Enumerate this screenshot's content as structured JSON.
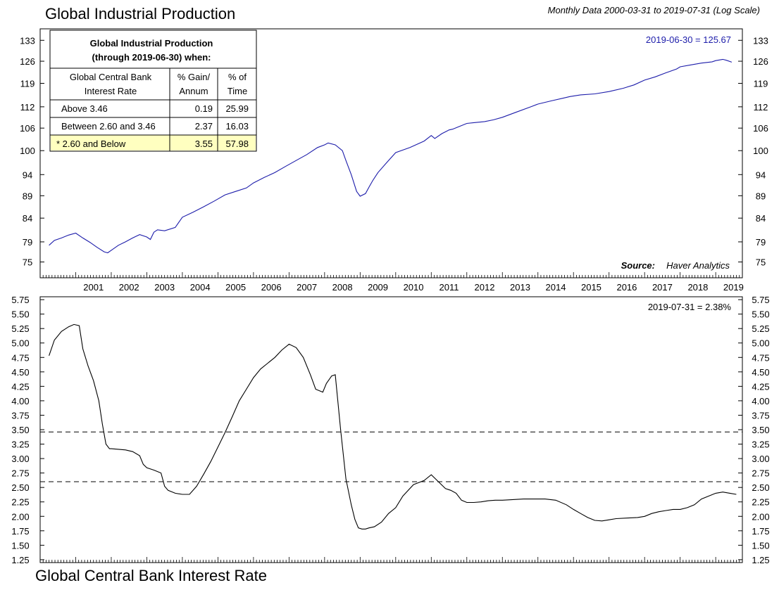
{
  "header": {
    "title": "Global Industrial Production",
    "subtitle": "Monthly Data 2000-03-31 to 2019-07-31 (Log Scale)"
  },
  "footer": {
    "title": "Global Central Bank Interest Rate"
  },
  "summary_table": {
    "title_line1": "Global Industrial Production",
    "title_line2": "(through 2019-06-30) when:",
    "col1_line1": "Global Central Bank",
    "col1_line2": "Interest Rate",
    "col2_line1": "% Gain/",
    "col2_line2": "Annum",
    "col3_line1": "% of",
    "col3_line2": "Time",
    "rows": [
      {
        "label": "Above 3.46",
        "gain": "0.19",
        "time": "25.99"
      },
      {
        "label": "Between 2.60 and 3.46",
        "gain": "2.37",
        "time": "16.03"
      },
      {
        "label": "* 2.60 and Below",
        "gain": "3.55",
        "time": "57.98"
      }
    ],
    "highlight_color": "#ffffc0"
  },
  "chart_data": [
    {
      "type": "line",
      "title": "Global Industrial Production",
      "scale": "log",
      "ylim": [
        72,
        137
      ],
      "y_ticks": [
        "133",
        "126",
        "119",
        "112",
        "106",
        "100",
        "94",
        "89",
        "84",
        "79",
        "75"
      ],
      "y_tick_values": [
        133,
        126,
        119,
        112,
        106,
        100,
        94,
        89,
        84,
        79,
        75
      ],
      "x_ticks": [
        "2001",
        "2002",
        "2003",
        "2004",
        "2005",
        "2006",
        "2007",
        "2008",
        "2009",
        "2010",
        "2011",
        "2012",
        "2013",
        "2014",
        "2015",
        "2016",
        "2017",
        "2018",
        "2019"
      ],
      "last_value_label": "2019-06-30 = 125.67",
      "source_label": "Source:",
      "source_name": "Haver Analytics",
      "color": "#1c1caa",
      "series": [
        {
          "x": [
            2000.25,
            2000.4,
            2000.6,
            2000.8,
            2001.0,
            2001.2,
            2001.4,
            2001.6,
            2001.8,
            2001.9,
            2002.0,
            2002.2,
            2002.4,
            2002.6,
            2002.8,
            2003.0,
            2003.1,
            2003.2,
            2003.3,
            2003.5,
            2003.8,
            2004.0,
            2004.3,
            2004.6,
            2004.9,
            2005.2,
            2005.5,
            2005.8,
            2006.0,
            2006.3,
            2006.6,
            2006.9,
            2007.2,
            2007.5,
            2007.8,
            2008.0,
            2008.1,
            2008.3,
            2008.5,
            2008.6,
            2008.75,
            2008.9,
            2009.0,
            2009.15,
            2009.25,
            2009.35,
            2009.5,
            2009.75,
            2010.0,
            2010.4,
            2010.8,
            2011.0,
            2011.1,
            2011.3,
            2011.5,
            2011.6,
            2011.75,
            2012.0,
            2012.2,
            2012.5,
            2012.75,
            2013.0,
            2013.4,
            2013.8,
            2014.0,
            2014.4,
            2014.7,
            2014.9,
            2015.2,
            2015.6,
            2016.0,
            2016.4,
            2016.7,
            2017.0,
            2017.3,
            2017.6,
            2017.9,
            2018.0,
            2018.3,
            2018.6,
            2018.9,
            2019.0,
            2019.2,
            2019.3,
            2019.45
          ],
          "y": [
            78.3,
            79.3,
            79.8,
            80.4,
            80.8,
            79.8,
            78.9,
            77.9,
            77.0,
            76.8,
            77.3,
            78.3,
            79.0,
            79.8,
            80.5,
            80.0,
            79.5,
            81.0,
            81.5,
            81.3,
            82.0,
            84.2,
            85.3,
            86.5,
            87.8,
            89.2,
            90.0,
            90.8,
            92.0,
            93.3,
            94.5,
            96.0,
            97.5,
            99.0,
            100.8,
            101.5,
            102.0,
            101.5,
            100.0,
            97.5,
            94.0,
            90.0,
            88.9,
            89.5,
            91.0,
            92.5,
            94.5,
            97.0,
            99.5,
            100.8,
            102.5,
            104.0,
            103.2,
            104.5,
            105.5,
            105.7,
            106.3,
            107.3,
            107.5,
            107.8,
            108.3,
            109.0,
            110.5,
            112.0,
            112.8,
            113.8,
            114.5,
            115.0,
            115.5,
            115.8,
            116.5,
            117.5,
            118.5,
            120.0,
            121.0,
            122.3,
            123.5,
            124.2,
            124.8,
            125.4,
            125.8,
            126.2,
            126.6,
            126.3,
            125.7
          ]
        }
      ]
    },
    {
      "type": "line",
      "title": "Global Central Bank Interest Rate",
      "ylim": [
        1.2,
        5.8
      ],
      "y_ticks": [
        "5.75",
        "5.50",
        "5.25",
        "5.00",
        "4.75",
        "4.50",
        "4.25",
        "4.00",
        "3.75",
        "3.50",
        "3.25",
        "3.00",
        "2.75",
        "2.50",
        "2.25",
        "2.00",
        "1.75",
        "1.50",
        "1.25"
      ],
      "y_tick_values": [
        5.75,
        5.5,
        5.25,
        5.0,
        4.75,
        4.5,
        4.25,
        4.0,
        3.75,
        3.5,
        3.25,
        3.0,
        2.75,
        2.5,
        2.25,
        2.0,
        1.75,
        1.5,
        1.25
      ],
      "last_value_label": "2019-07-31 = 2.38%",
      "thresholds": [
        3.46,
        2.6
      ],
      "color": "#000000",
      "series": [
        {
          "x": [
            2000.25,
            2000.4,
            2000.6,
            2000.8,
            2000.95,
            2001.1,
            2001.2,
            2001.35,
            2001.5,
            2001.65,
            2001.75,
            2001.85,
            2001.95,
            2002.0,
            2002.2,
            2002.4,
            2002.6,
            2002.8,
            2002.9,
            2003.0,
            2003.2,
            2003.4,
            2003.5,
            2003.6,
            2003.8,
            2004.0,
            2004.2,
            2004.4,
            2004.6,
            2004.8,
            2005.0,
            2005.2,
            2005.4,
            2005.6,
            2005.8,
            2006.0,
            2006.2,
            2006.4,
            2006.6,
            2006.8,
            2007.0,
            2007.2,
            2007.4,
            2007.6,
            2007.75,
            2007.95,
            2008.05,
            2008.2,
            2008.3,
            2008.45,
            2008.6,
            2008.75,
            2008.85,
            2008.95,
            2009.05,
            2009.15,
            2009.25,
            2009.4,
            2009.6,
            2009.8,
            2010.0,
            2010.2,
            2010.5,
            2010.8,
            2011.0,
            2011.2,
            2011.4,
            2011.55,
            2011.7,
            2011.85,
            2012.0,
            2012.2,
            2012.4,
            2012.6,
            2012.8,
            2013.0,
            2013.3,
            2013.6,
            2013.9,
            2014.2,
            2014.5,
            2014.8,
            2015.0,
            2015.2,
            2015.4,
            2015.6,
            2015.8,
            2016.0,
            2016.2,
            2016.5,
            2016.8,
            2017.0,
            2017.2,
            2017.4,
            2017.6,
            2017.8,
            2018.0,
            2018.2,
            2018.4,
            2018.6,
            2018.8,
            2019.0,
            2019.2,
            2019.4,
            2019.58
          ],
          "y": [
            4.78,
            5.05,
            5.2,
            5.28,
            5.32,
            5.3,
            4.9,
            4.6,
            4.35,
            4.0,
            3.6,
            3.25,
            3.17,
            3.17,
            3.16,
            3.15,
            3.12,
            3.05,
            2.9,
            2.84,
            2.8,
            2.75,
            2.52,
            2.45,
            2.4,
            2.38,
            2.38,
            2.52,
            2.73,
            2.95,
            3.2,
            3.45,
            3.72,
            4.0,
            4.2,
            4.4,
            4.55,
            4.65,
            4.75,
            4.88,
            4.98,
            4.92,
            4.75,
            4.45,
            4.2,
            4.15,
            4.3,
            4.43,
            4.45,
            3.5,
            2.65,
            2.2,
            1.95,
            1.8,
            1.78,
            1.78,
            1.8,
            1.82,
            1.9,
            2.05,
            2.15,
            2.35,
            2.55,
            2.62,
            2.72,
            2.6,
            2.48,
            2.45,
            2.4,
            2.28,
            2.24,
            2.24,
            2.25,
            2.27,
            2.28,
            2.28,
            2.29,
            2.3,
            2.3,
            2.3,
            2.28,
            2.2,
            2.12,
            2.05,
            1.98,
            1.93,
            1.92,
            1.94,
            1.96,
            1.97,
            1.98,
            2.0,
            2.05,
            2.08,
            2.1,
            2.12,
            2.12,
            2.15,
            2.2,
            2.3,
            2.35,
            2.4,
            2.42,
            2.4,
            2.38
          ]
        }
      ]
    }
  ]
}
